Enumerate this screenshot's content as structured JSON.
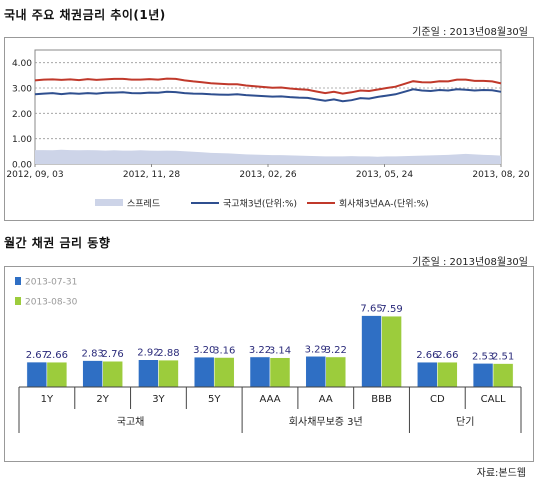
{
  "top": {
    "title": "국내 주요 채권금리 추이(1년)",
    "base_date": "기준일 : 2013년08월30일"
  },
  "bottom": {
    "title": "월간 채권 금리 동향",
    "base_date": "기준일 : 2013년08월30일"
  },
  "source": "자료:본드웹",
  "chart_data": [
    {
      "type": "line",
      "y_tick_labels": [
        "0.00",
        "1.00",
        "2.00",
        "3.00",
        "4.00"
      ],
      "ylim": [
        0,
        4.5
      ],
      "x_tick_labels": [
        "2012, 09, 03",
        "2012, 11, 28",
        "2013, 02, 26",
        "2013, 05, 24",
        "2013, 08, 20"
      ],
      "grid": true,
      "legend_position": "bottom",
      "series": [
        {
          "name": "스프레드",
          "style": "area",
          "color": "#cdd4e8",
          "values": [
            0.55,
            0.55,
            0.54,
            0.56,
            0.55,
            0.54,
            0.55,
            0.54,
            0.53,
            0.54,
            0.53,
            0.53,
            0.54,
            0.53,
            0.52,
            0.53,
            0.52,
            0.5,
            0.48,
            0.46,
            0.44,
            0.43,
            0.42,
            0.4,
            0.38,
            0.37,
            0.36,
            0.35,
            0.35,
            0.34,
            0.33,
            0.32,
            0.31,
            0.3,
            0.3,
            0.3,
            0.31,
            0.3,
            0.3,
            0.29,
            0.3,
            0.3,
            0.31,
            0.32,
            0.33,
            0.34,
            0.35,
            0.36,
            0.38,
            0.4,
            0.38,
            0.36,
            0.35,
            0.33
          ]
        },
        {
          "name": "국고채3년(단위:%)",
          "style": "line",
          "color": "#2f4f8f",
          "values": [
            2.75,
            2.78,
            2.8,
            2.76,
            2.79,
            2.77,
            2.8,
            2.78,
            2.81,
            2.82,
            2.83,
            2.8,
            2.79,
            2.82,
            2.81,
            2.85,
            2.84,
            2.8,
            2.78,
            2.77,
            2.75,
            2.74,
            2.73,
            2.75,
            2.72,
            2.7,
            2.68,
            2.66,
            2.67,
            2.64,
            2.62,
            2.61,
            2.55,
            2.5,
            2.55,
            2.48,
            2.52,
            2.6,
            2.58,
            2.65,
            2.7,
            2.75,
            2.85,
            2.95,
            2.9,
            2.88,
            2.92,
            2.9,
            2.95,
            2.93,
            2.9,
            2.92,
            2.91,
            2.85
          ]
        },
        {
          "name": "회사채3년AA-(단위:%)",
          "style": "line",
          "color": "#c0392b",
          "values": [
            3.3,
            3.33,
            3.34,
            3.32,
            3.34,
            3.31,
            3.35,
            3.32,
            3.34,
            3.36,
            3.36,
            3.33,
            3.33,
            3.35,
            3.33,
            3.37,
            3.36,
            3.3,
            3.26,
            3.23,
            3.19,
            3.17,
            3.15,
            3.15,
            3.1,
            3.07,
            3.04,
            3.01,
            3.02,
            2.98,
            2.95,
            2.93,
            2.86,
            2.8,
            2.85,
            2.78,
            2.83,
            2.9,
            2.88,
            2.94,
            3.0,
            3.05,
            3.16,
            3.27,
            3.23,
            3.22,
            3.27,
            3.26,
            3.33,
            3.33,
            3.28,
            3.28,
            3.26,
            3.18
          ]
        }
      ]
    },
    {
      "type": "bar",
      "categories": [
        "1Y",
        "2Y",
        "3Y",
        "5Y",
        "AAA",
        "AA",
        "BBB",
        "CD",
        "CALL"
      ],
      "groups": [
        {
          "label": "국고채",
          "span": 4
        },
        {
          "label": "회사채무보증 3년",
          "span": 3
        },
        {
          "label": "단기",
          "span": 2
        }
      ],
      "legend_position": "top-left",
      "series": [
        {
          "name": "2013-07-31",
          "color": "#2f6fc4",
          "values": [
            2.67,
            2.83,
            2.92,
            3.2,
            3.22,
            3.29,
            7.65,
            2.66,
            2.53
          ]
        },
        {
          "name": "2013-08-30",
          "color": "#9ccc3c",
          "values": [
            2.66,
            2.76,
            2.88,
            3.16,
            3.14,
            3.22,
            7.59,
            2.66,
            2.51
          ]
        }
      ],
      "value_label_color": "#2a2a7a",
      "ylim": [
        0,
        9
      ]
    }
  ]
}
